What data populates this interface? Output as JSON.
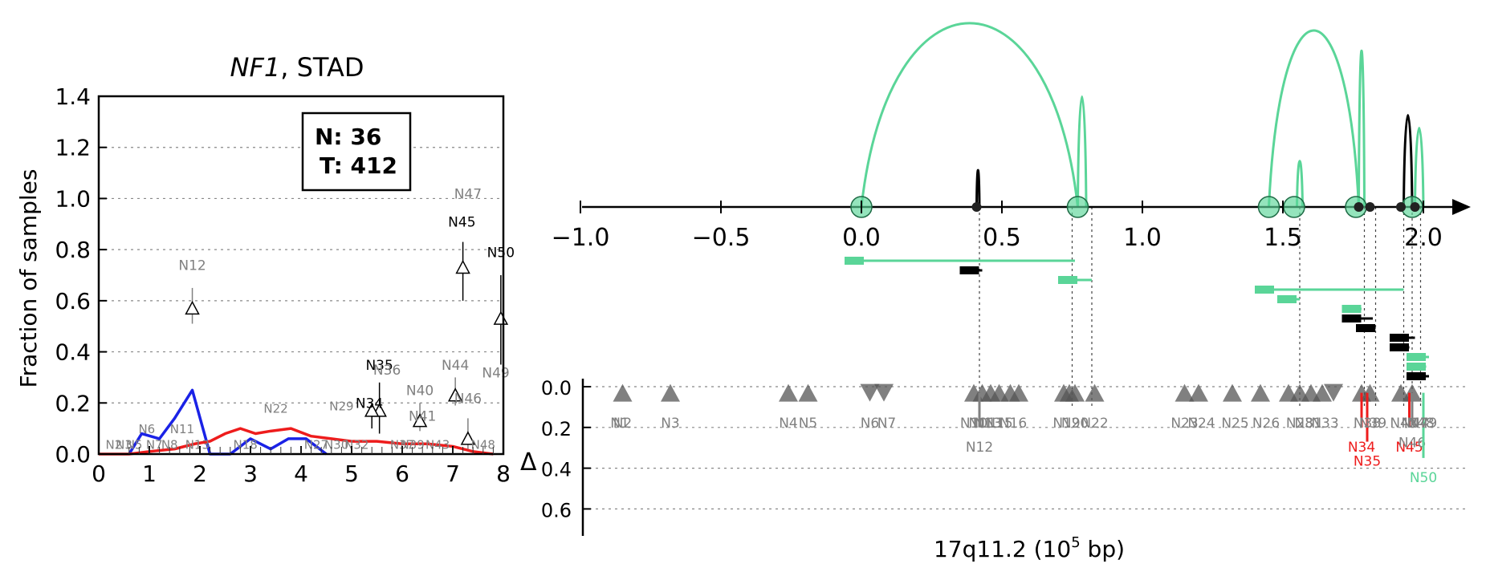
{
  "left_panel": {
    "title_gene": "NF1",
    "title_suffix": ", STAD",
    "ylabel": "Fraction of samples",
    "legend_n": "N: 36",
    "legend_t": "T: 412",
    "x_ticks": [
      "0",
      "1",
      "2",
      "3",
      "4",
      "5",
      "6",
      "7",
      "8"
    ],
    "y_ticks": [
      "0.0",
      "0.2",
      "0.4",
      "0.6",
      "0.8",
      "1.0",
      "1.2",
      "1.4"
    ]
  },
  "right_panel": {
    "xlabel": "17q11.2 (10",
    "xlabel_sup": "5",
    "xlabel_end": " bp)",
    "delta_label": "Δ",
    "x_ticks": [
      "−1.0",
      "−0.5",
      "0.0",
      "0.5",
      "1.0",
      "1.5",
      "2.0"
    ],
    "delta_ticks": [
      "0.0",
      "0.2",
      "0.4",
      "0.6"
    ]
  },
  "colors": {
    "green": "#5ad598",
    "red": "#ee1c1c",
    "blue": "#1a22e6",
    "grey": "#808080",
    "dark_grey": "#555555",
    "black": "#000000"
  },
  "chart_data": [
    {
      "type": "line",
      "xlim": [
        0,
        8
      ],
      "ylim": [
        0,
        1.4
      ],
      "grid": "horizontal dotted",
      "legend_placement": "top-right",
      "series": [
        {
          "color": "blue",
          "x": [
            0.6,
            0.85,
            1.2,
            1.5,
            1.85,
            2.2,
            2.6,
            3.0,
            3.4,
            3.75,
            4.1,
            4.5
          ],
          "y": [
            0.0,
            0.08,
            0.06,
            0.14,
            0.25,
            0.0,
            0.0,
            0.06,
            0.02,
            0.06,
            0.06,
            0.0
          ]
        },
        {
          "color": "red",
          "x": [
            0.0,
            0.6,
            1.0,
            1.5,
            1.9,
            2.2,
            2.5,
            2.8,
            3.1,
            3.4,
            3.8,
            4.2,
            4.6,
            5.0,
            5.5,
            6.0,
            6.5,
            7.0,
            7.4,
            7.8
          ],
          "y": [
            0.0,
            0.0,
            0.01,
            0.02,
            0.04,
            0.05,
            0.08,
            0.1,
            0.08,
            0.09,
            0.1,
            0.07,
            0.06,
            0.05,
            0.05,
            0.04,
            0.04,
            0.03,
            0.01,
            0.0
          ]
        }
      ],
      "points": [
        {
          "label": "N12",
          "x": 1.85,
          "y": 0.57,
          "err": [
            0.51,
            0.65
          ],
          "color": "grey",
          "label_dx": 0,
          "label_dy": 0.15
        },
        {
          "label": "N45",
          "x": 7.2,
          "y": 0.73,
          "err": [
            0.6,
            0.83
          ],
          "color": "black",
          "label_dx": -0.02,
          "label_dy": 0.16
        },
        {
          "label": "N50",
          "x": 7.95,
          "y": 0.53,
          "err": [
            0.35,
            0.7
          ],
          "color": "black",
          "label_dx": 0,
          "label_dy": 0.24
        },
        {
          "label": "N35",
          "x": 5.55,
          "y": 0.17,
          "err": [
            0.08,
            0.28
          ],
          "color": "black",
          "label_dx": 0,
          "label_dy": 0.16
        },
        {
          "label": "N34",
          "x": 5.4,
          "y": 0.17,
          "err": [
            0.1,
            0.2
          ],
          "color": "black",
          "label_dx": -0.05,
          "label_dy": 0.01
        },
        {
          "label": "N36",
          "x": 5.55,
          "y": 0.27,
          "err": null,
          "color": "grey",
          "label_dx": 0.15,
          "label_dy": 0.04,
          "no_marker": true
        },
        {
          "label": "N40",
          "x": 6.35,
          "y": 0.13,
          "err": [
            0.09,
            0.2
          ],
          "color": "grey",
          "label_dx": 0,
          "label_dy": 0.1
        },
        {
          "label": "N41",
          "x": 6.4,
          "y": 0.13,
          "err": null,
          "color": "grey",
          "label_dx": 0.0,
          "label_dy": -0.0,
          "no_marker": true
        },
        {
          "label": "N44",
          "x": 7.05,
          "y": 0.23,
          "err": [
            0.19,
            0.3
          ],
          "color": "grey",
          "label_dx": 0,
          "label_dy": 0.1
        },
        {
          "label": "N46",
          "x": 7.3,
          "y": 0.06,
          "err": [
            0.02,
            0.14
          ],
          "color": "grey",
          "label_dx": 0,
          "label_dy": 0.14
        },
        {
          "label": "N47",
          "x": 7.5,
          "y": 1.0,
          "err": null,
          "color": "grey",
          "label_dx": -0.2,
          "label_dy": 0.0,
          "no_marker": true
        },
        {
          "label": "N49",
          "x": 7.85,
          "y": 0.3,
          "err": null,
          "color": "grey",
          "label_dx": 0,
          "label_dy": 0.0,
          "no_marker": true
        }
      ],
      "bottom_labels": [
        {
          "label": "N2",
          "x": 0.3
        },
        {
          "label": "N3",
          "x": 0.5
        },
        {
          "label": "N5",
          "x": 0.7
        },
        {
          "label": "N6",
          "x": 0.95,
          "y": 0.1
        },
        {
          "label": "N7",
          "x": 1.1
        },
        {
          "label": "N8",
          "x": 1.4
        },
        {
          "label": "N11",
          "x": 1.65,
          "y": 0.1
        },
        {
          "label": "N13",
          "x": 1.95
        },
        {
          "label": "N18",
          "x": 2.9
        },
        {
          "label": "N22",
          "x": 3.5,
          "y": 0.18
        },
        {
          "label": "N27",
          "x": 4.3
        },
        {
          "label": "N29",
          "x": 4.8,
          "y": 0.19
        },
        {
          "label": "N30",
          "x": 4.7
        },
        {
          "label": "N32",
          "x": 5.1
        },
        {
          "label": "N37",
          "x": 6.0
        },
        {
          "label": "N39",
          "x": 6.2
        },
        {
          "label": "N43",
          "x": 6.7
        },
        {
          "label": "N48",
          "x": 7.6
        }
      ]
    },
    {
      "type": "scatter",
      "xlim": [
        -1.1,
        2.15
      ],
      "ylim": [
        0.0,
        0.7
      ],
      "arcs": [
        {
          "x1": 0.0,
          "x2": 0.77,
          "h": 1.0,
          "color": "green"
        },
        {
          "x1": 0.77,
          "x2": 0.8,
          "h": 0.6,
          "color": "green"
        },
        {
          "x1": 1.45,
          "x2": 1.77,
          "h": 0.96,
          "color": "green"
        },
        {
          "x1": 1.55,
          "x2": 1.57,
          "h": 0.25,
          "color": "green"
        },
        {
          "x1": 1.77,
          "x2": 1.79,
          "h": 0.85,
          "color": "green"
        },
        {
          "x1": 1.93,
          "x2": 1.96,
          "h": 0.5,
          "color": "black"
        },
        {
          "x1": 1.97,
          "x2": 2.0,
          "h": 0.43,
          "color": "green"
        },
        {
          "x1": 0.41,
          "x2": 0.42,
          "h": 0.2,
          "color": "black"
        }
      ],
      "nodes": [
        {
          "x": 0.0,
          "color": "green",
          "big": true
        },
        {
          "x": 0.77,
          "color": "green",
          "big": true
        },
        {
          "x": 1.45,
          "color": "green",
          "big": true
        },
        {
          "x": 1.54,
          "color": "green",
          "big": true
        },
        {
          "x": 1.76,
          "color": "green",
          "big": true
        },
        {
          "x": 1.96,
          "color": "green",
          "big": true
        },
        {
          "x": 0.41,
          "color": "black",
          "big": false
        },
        {
          "x": 1.77,
          "color": "black",
          "big": false
        },
        {
          "x": 1.81,
          "color": "black",
          "big": false
        },
        {
          "x": 1.92,
          "color": "black",
          "big": false
        },
        {
          "x": 1.97,
          "color": "black",
          "big": false
        }
      ],
      "segments": [
        {
          "x1": -0.06,
          "x2": 0.76,
          "y": 0,
          "color": "green"
        },
        {
          "x1": 0.35,
          "x2": 0.43,
          "y": 1,
          "color": "black"
        },
        {
          "x1": 0.7,
          "x2": 0.82,
          "y": 2,
          "color": "green"
        },
        {
          "x1": 1.4,
          "x2": 1.93,
          "y": 3,
          "color": "green"
        },
        {
          "x1": 1.48,
          "x2": 1.56,
          "y": 4,
          "color": "green"
        },
        {
          "x1": 1.71,
          "x2": 1.78,
          "y": 5,
          "color": "green"
        },
        {
          "x1": 1.71,
          "x2": 1.82,
          "y": 6,
          "color": "black"
        },
        {
          "x1": 1.76,
          "x2": 1.83,
          "y": 7,
          "color": "black"
        },
        {
          "x1": 1.88,
          "x2": 1.97,
          "y": 8,
          "color": "black"
        },
        {
          "x1": 1.88,
          "x2": 1.95,
          "y": 9,
          "color": "black"
        },
        {
          "x1": 1.94,
          "x2": 2.02,
          "y": 10,
          "color": "green"
        },
        {
          "x1": 1.94,
          "x2": 2.01,
          "y": 11,
          "color": "green"
        },
        {
          "x1": 1.94,
          "x2": 2.02,
          "y": 12,
          "color": "black"
        }
      ],
      "drops": [
        0.42,
        0.75,
        0.82,
        1.56,
        1.79,
        1.83,
        1.93,
        1.96,
        1.99
      ],
      "markers": [
        {
          "x": -0.85,
          "dir": "up"
        },
        {
          "x": -0.68,
          "dir": "up"
        },
        {
          "x": -0.26,
          "dir": "up"
        },
        {
          "x": -0.19,
          "dir": "up"
        },
        {
          "x": 0.03,
          "dir": "down"
        },
        {
          "x": 0.08,
          "dir": "down"
        },
        {
          "x": 0.4,
          "dir": "up"
        },
        {
          "x": 0.43,
          "dir": "up"
        },
        {
          "x": 0.46,
          "dir": "up"
        },
        {
          "x": 0.49,
          "dir": "up"
        },
        {
          "x": 0.53,
          "dir": "up"
        },
        {
          "x": 0.56,
          "dir": "up"
        },
        {
          "x": 0.72,
          "dir": "up"
        },
        {
          "x": 0.74,
          "dir": "up"
        },
        {
          "x": 0.76,
          "dir": "up"
        },
        {
          "x": 0.83,
          "dir": "up"
        },
        {
          "x": 1.15,
          "dir": "up"
        },
        {
          "x": 1.2,
          "dir": "up"
        },
        {
          "x": 1.32,
          "dir": "up"
        },
        {
          "x": 1.42,
          "dir": "up"
        },
        {
          "x": 1.52,
          "dir": "up"
        },
        {
          "x": 1.56,
          "dir": "up"
        },
        {
          "x": 1.6,
          "dir": "up"
        },
        {
          "x": 1.64,
          "dir": "up"
        },
        {
          "x": 1.68,
          "dir": "down"
        },
        {
          "x": 1.78,
          "dir": "up"
        },
        {
          "x": 1.81,
          "dir": "up"
        },
        {
          "x": 1.92,
          "dir": "up"
        },
        {
          "x": 1.96,
          "dir": "up"
        }
      ],
      "stems": [
        {
          "label": "N12",
          "x": 0.42,
          "delta": 0.2,
          "color": "grey"
        },
        {
          "label": "N34",
          "x": 1.78,
          "delta": 0.2,
          "color": "red"
        },
        {
          "label": "N35",
          "x": 1.8,
          "delta": 0.27,
          "color": "red"
        },
        {
          "label": "N45",
          "x": 1.95,
          "delta": 0.2,
          "color": "red"
        },
        {
          "label": "N46",
          "x": 1.96,
          "delta": 0.18,
          "color": "grey"
        },
        {
          "label": "N50",
          "x": 2.0,
          "delta": 0.35,
          "color": "green"
        }
      ],
      "node_labels": [
        {
          "label": "N1",
          "x": -0.86
        },
        {
          "label": "N2",
          "x": -0.85
        },
        {
          "label": "N3",
          "x": -0.68
        },
        {
          "label": "N4",
          "x": -0.26
        },
        {
          "label": "N5",
          "x": -0.19
        },
        {
          "label": "N6",
          "x": 0.03
        },
        {
          "label": "N7",
          "x": 0.09
        },
        {
          "label": "N10",
          "x": 0.4
        },
        {
          "label": "N11",
          "x": 0.43
        },
        {
          "label": "N13",
          "x": 0.45
        },
        {
          "label": "N15",
          "x": 0.49
        },
        {
          "label": "N16",
          "x": 0.54
        },
        {
          "label": "N19",
          "x": 0.73
        },
        {
          "label": "N20",
          "x": 0.76
        },
        {
          "label": "N22",
          "x": 0.83
        },
        {
          "label": "N23",
          "x": 1.15
        },
        {
          "label": "N24",
          "x": 1.21
        },
        {
          "label": "N25",
          "x": 1.33
        },
        {
          "label": "N26",
          "x": 1.44
        },
        {
          "label": "N28",
          "x": 1.56
        },
        {
          "label": "N31",
          "x": 1.59
        },
        {
          "label": "N33",
          "x": 1.65
        },
        {
          "label": "N38",
          "x": 1.8
        },
        {
          "label": "N39",
          "x": 1.82
        },
        {
          "label": "N42",
          "x": 1.93
        },
        {
          "label": "N47",
          "x": 1.97
        },
        {
          "label": "N48",
          "x": 1.99
        },
        {
          "label": "N49",
          "x": 2.0
        }
      ]
    }
  ]
}
